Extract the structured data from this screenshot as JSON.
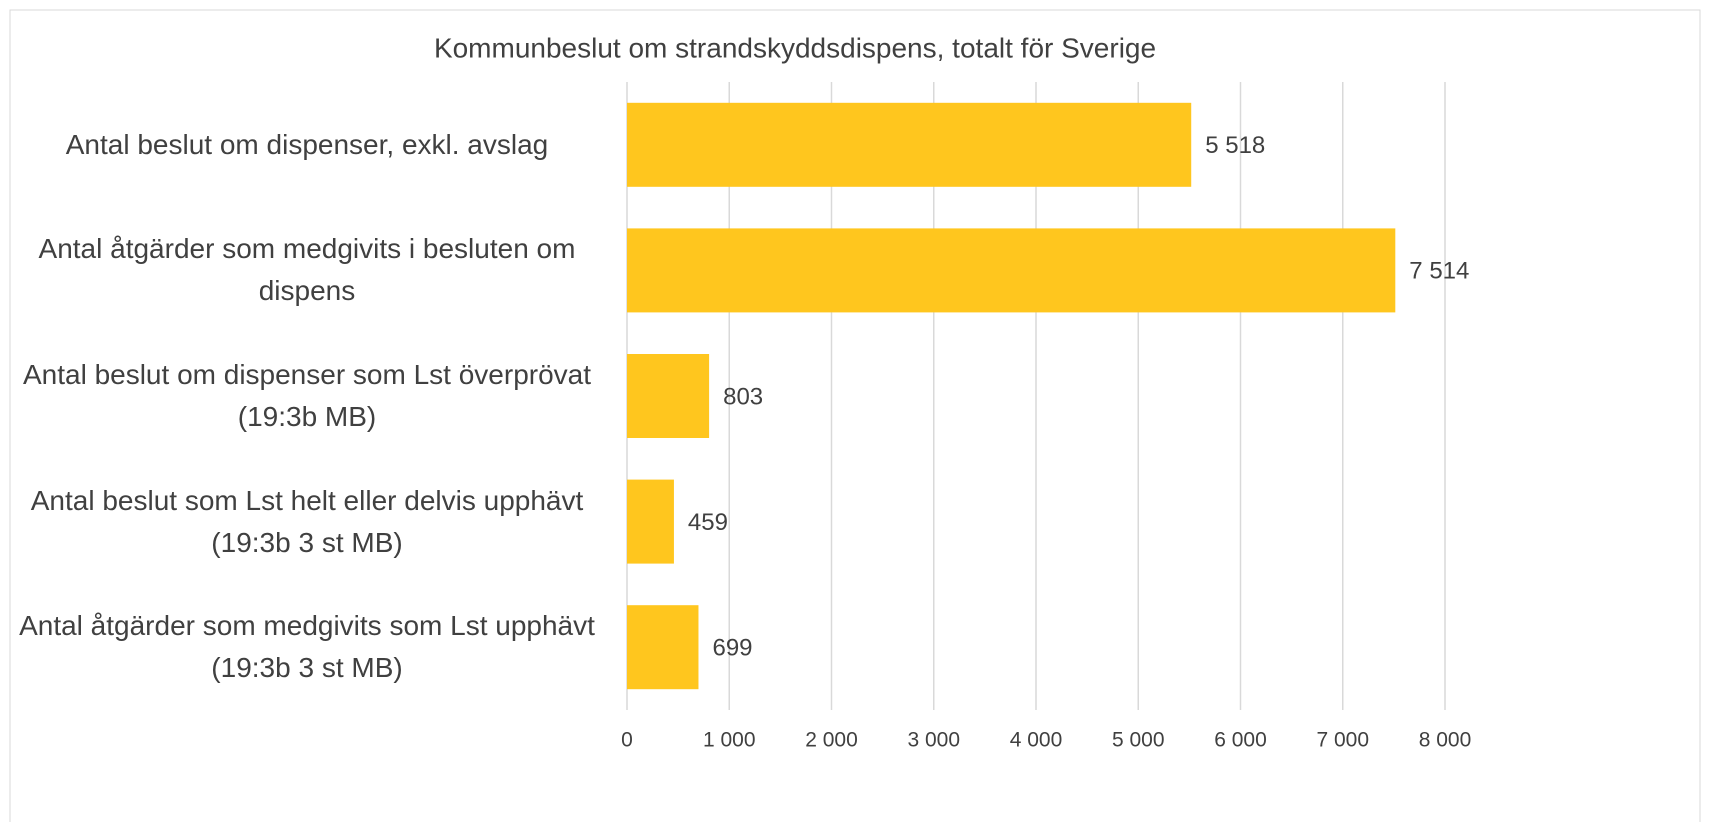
{
  "chart_data": {
    "type": "bar",
    "orientation": "horizontal",
    "title": "Kommunbeslut om strandskyddsdispens, totalt för Sverige",
    "categories": [
      "Antal beslut om dispenser, exkl. avslag",
      "Antal åtgärder som medgivits i besluten om dispens",
      "Antal beslut om dispenser som Lst överprövat (19:3b MB)",
      "Antal beslut som Lst helt eller delvis upphävt (19:3b 3 st MB)",
      "Antal åtgärder som medgivits som Lst upphävt (19:3b 3 st MB)"
    ],
    "values": [
      5518,
      7514,
      803,
      459,
      699
    ],
    "value_labels": [
      "5 518",
      "7 514",
      "803",
      "459",
      "699"
    ],
    "color": "#ffc61e",
    "xlim": [
      0,
      8000
    ],
    "xticks": [
      0,
      {
        "value": 1000,
        "label": "1 000"
      },
      {
        "value": 2000,
        "label": "2 000"
      },
      {
        "value": 3000,
        "label": "3 000"
      },
      {
        "value": 4000,
        "label": "4 000"
      },
      {
        "value": 5000,
        "label": "5 000"
      },
      {
        "value": 6000,
        "label": "6 000"
      },
      {
        "value": 7000,
        "label": "7 000"
      },
      {
        "value": 8000,
        "label": "8 000"
      }
    ],
    "grid": true
  }
}
